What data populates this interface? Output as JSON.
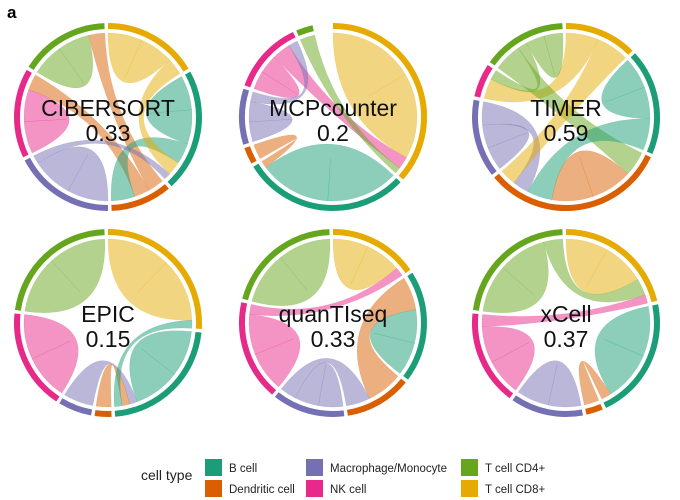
{
  "panel_letter": "a",
  "colors": {
    "B cell": "#1b9e77",
    "Dendritic cell": "#d95f02",
    "Macrophage/Monocyte": "#7570b3",
    "NK cell": "#e7298a",
    "T cell CD4+": "#66a61e",
    "T cell CD8+": "#e6ab02"
  },
  "legend": {
    "title": "cell type",
    "items": [
      "B cell",
      "Dendritic cell",
      "Macrophage/Monocyte",
      "NK cell",
      "T cell CD4+",
      "T cell CD8+"
    ]
  },
  "chart_data": [
    {
      "type": "chord",
      "method": "CIBERSORT",
      "score": "0.33",
      "sectors": [
        {
          "name": "T cell CD8+",
          "share": 0.17
        },
        {
          "name": "B cell",
          "share": 0.22
        },
        {
          "name": "Dendritic cell",
          "share": 0.11
        },
        {
          "name": "Macrophage/Monocyte",
          "share": 0.18
        },
        {
          "name": "NK cell",
          "share": 0.16
        },
        {
          "name": "T cell CD4+",
          "share": 0.16
        }
      ],
      "links": [
        [
          "T cell CD8+",
          "T cell CD8+",
          4
        ],
        [
          "B cell",
          "B cell",
          5
        ],
        [
          "Macrophage/Monocyte",
          "Macrophage/Monocyte",
          5
        ],
        [
          "NK cell",
          "NK cell",
          4
        ],
        [
          "T cell CD4+",
          "T cell CD4+",
          4
        ],
        [
          "Dendritic cell",
          "T cell CD4+",
          2
        ],
        [
          "Dendritic cell",
          "NK cell",
          2
        ],
        [
          "B cell",
          "Dendritic cell",
          3
        ],
        [
          "T cell CD8+",
          "B cell",
          2
        ],
        [
          "Macrophage/Monocyte",
          "B cell",
          1
        ]
      ]
    },
    {
      "type": "chord",
      "method": "MCPcounter",
      "score": "0.2",
      "sectors": [
        {
          "name": "T cell CD8+",
          "share": 0.38
        },
        {
          "name": "B cell",
          "share": 0.3
        },
        {
          "name": "Dendritic cell",
          "share": 0.03
        },
        {
          "name": "Macrophage/Monocyte",
          "share": 0.1
        },
        {
          "name": "NK cell",
          "share": 0.13
        },
        {
          "name": "T cell CD4+",
          "share": 0.03
        }
      ],
      "links": [
        [
          "T cell CD8+",
          "T cell CD8+",
          14
        ],
        [
          "B cell",
          "B cell",
          10
        ],
        [
          "NK cell",
          "NK cell",
          2
        ],
        [
          "NK cell",
          "T cell CD8+",
          2
        ],
        [
          "Macrophage/Monocyte",
          "Macrophage/Monocyte",
          2
        ],
        [
          "Macrophage/Monocyte",
          "NK cell",
          1
        ],
        [
          "Dendritic cell",
          "B cell",
          1
        ],
        [
          "T cell CD4+",
          "T cell CD8+",
          1
        ]
      ]
    },
    {
      "type": "chord",
      "method": "TIMER",
      "score": "0.59",
      "sectors": [
        {
          "name": "T cell CD8+",
          "share": 0.13
        },
        {
          "name": "B cell",
          "share": 0.19
        },
        {
          "name": "Dendritic cell",
          "share": 0.33
        },
        {
          "name": "Macrophage/Monocyte",
          "share": 0.14
        },
        {
          "name": "NK cell",
          "share": 0.06
        },
        {
          "name": "T cell CD4+",
          "share": 0.15
        }
      ],
      "links": [
        [
          "T cell CD8+",
          "NK cell",
          2
        ],
        [
          "T cell CD4+",
          "Dendritic cell",
          3
        ],
        [
          "Dendritic cell",
          "Dendritic cell",
          5
        ],
        [
          "B cell",
          "B cell",
          3
        ],
        [
          "B cell",
          "Dendritic cell",
          3
        ],
        [
          "Macrophage/Monocyte",
          "Macrophage/Monocyte",
          2
        ],
        [
          "Macrophage/Monocyte",
          "Dendritic cell",
          2
        ],
        [
          "T cell CD8+",
          "Dendritic cell",
          2
        ],
        [
          "T cell CD4+",
          "NK cell",
          1
        ],
        [
          "T cell CD4+",
          "T cell CD4+",
          2
        ]
      ]
    },
    {
      "type": "chord",
      "method": "EPIC",
      "score": "0.15",
      "sectors": [
        {
          "name": "T cell CD8+",
          "share": 0.27
        },
        {
          "name": "B cell",
          "share": 0.23
        },
        {
          "name": "Dendritic cell",
          "share": 0.03
        },
        {
          "name": "Macrophage/Monocyte",
          "share": 0.06
        },
        {
          "name": "NK cell",
          "share": 0.18
        },
        {
          "name": "T cell CD4+",
          "share": 0.23
        }
      ],
      "links": [
        [
          "T cell CD4+",
          "T cell CD4+",
          7
        ],
        [
          "T cell CD8+",
          "T cell CD8+",
          8
        ],
        [
          "B cell",
          "B cell",
          6
        ],
        [
          "NK cell",
          "NK cell",
          5
        ],
        [
          "Macrophage/Monocyte",
          "B cell",
          1
        ],
        [
          "Dendritic cell",
          "B cell",
          1
        ],
        [
          "B cell",
          "T cell CD8+",
          1
        ]
      ]
    },
    {
      "type": "chord",
      "method": "quanTIseq",
      "score": "0.33",
      "sectors": [
        {
          "name": "T cell CD8+",
          "share": 0.16
        },
        {
          "name": "B cell",
          "share": 0.2
        },
        {
          "name": "Dendritic cell",
          "share": 0.12
        },
        {
          "name": "Macrophage/Monocyte",
          "share": 0.13
        },
        {
          "name": "NK cell",
          "share": 0.18
        },
        {
          "name": "T cell CD4+",
          "share": 0.21
        }
      ],
      "links": [
        [
          "T cell CD4+",
          "T cell CD4+",
          5
        ],
        [
          "T cell CD8+",
          "T cell CD8+",
          4
        ],
        [
          "NK cell",
          "NK cell",
          4
        ],
        [
          "Macrophage/Monocyte",
          "Macrophage/Monocyte",
          3
        ],
        [
          "Dendritic cell",
          "B cell",
          3
        ],
        [
          "B cell",
          "B cell",
          3
        ],
        [
          "Macrophage/Monocyte",
          "Dendritic cell",
          2
        ],
        [
          "NK cell",
          "T cell CD8+",
          1
        ]
      ]
    },
    {
      "type": "chord",
      "method": "xCell",
      "score": "0.37",
      "sectors": [
        {
          "name": "T cell CD8+",
          "share": 0.22
        },
        {
          "name": "B cell",
          "share": 0.22
        },
        {
          "name": "Dendritic cell",
          "share": 0.03
        },
        {
          "name": "Macrophage/Monocyte",
          "share": 0.13
        },
        {
          "name": "NK cell",
          "share": 0.17
        },
        {
          "name": "T cell CD4+",
          "share": 0.23
        }
      ],
      "links": [
        [
          "T cell CD4+",
          "T cell CD4+",
          5
        ],
        [
          "T cell CD8+",
          "T cell CD8+",
          5
        ],
        [
          "B cell",
          "B cell",
          5
        ],
        [
          "NK cell",
          "NK cell",
          3
        ],
        [
          "Macrophage/Monocyte",
          "Macrophage/Monocyte",
          3
        ],
        [
          "T cell CD4+",
          "T cell CD8+",
          2
        ],
        [
          "NK cell",
          "T cell CD8+",
          1
        ],
        [
          "Dendritic cell",
          "B cell",
          1
        ]
      ]
    }
  ]
}
